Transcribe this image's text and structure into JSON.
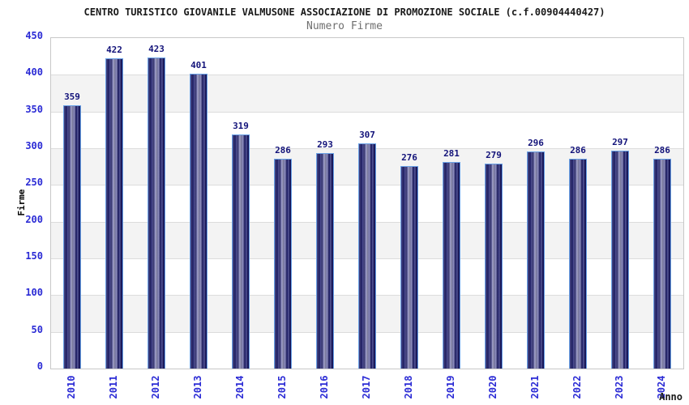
{
  "page": {
    "background": "#ffffff"
  },
  "chart_data": {
    "type": "bar",
    "title": "CENTRO TURISTICO GIOVANILE VALMUSONE ASSOCIAZIONE DI PROMOZIONE SOCIALE (c.f.00904440427)",
    "subtitle": "Numero Firme",
    "xlabel": "Anno",
    "ylabel": "Firme",
    "categories": [
      "2010",
      "2011",
      "2012",
      "2013",
      "2014",
      "2015",
      "2016",
      "2017",
      "2018",
      "2019",
      "2020",
      "2021",
      "2022",
      "2023",
      "2024"
    ],
    "values": [
      359,
      422,
      423,
      401,
      319,
      286,
      293,
      307,
      276,
      281,
      279,
      296,
      286,
      297,
      286
    ],
    "ylim": [
      0,
      450
    ],
    "ytick_step": 50,
    "yticks": [
      0,
      50,
      100,
      150,
      200,
      250,
      300,
      350,
      400,
      450
    ],
    "grid": "horizontal, alternating shaded bands",
    "legend_position": "none",
    "value_labels": "above bars",
    "colors": {
      "bar_dark": "#10105c",
      "bar_highlight": "#a2a2c9",
      "bar_border": "#69a1e6",
      "axis_tick_label": "#2b2bd5",
      "value_label": "#13137a",
      "title": "#1a1a1a",
      "subtitle": "#6f6f6f",
      "band_shade": "#f3f3f3",
      "gridline": "#dcdcdc",
      "plot_border": "#c8c8c8",
      "axis_title": "#000000"
    }
  }
}
